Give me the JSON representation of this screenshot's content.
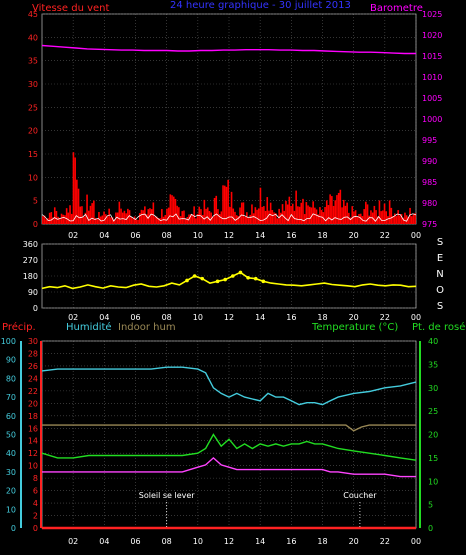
{
  "header": {
    "wind_label": "Vitesse du vent",
    "title": "24 heure graphique - 30 juillet 2013",
    "baro_label": "Barometre"
  },
  "colors": {
    "wind": "#ff0000",
    "wind_gust": "#ffff00",
    "wind_avg": "#ffffff",
    "baro": "#ff00ff",
    "title": "#3333ff",
    "direction": "#ffff00",
    "humidity": "#44ccdd",
    "indoor_hum": "#998855",
    "temperature": "#22dd22",
    "dew_point": "#ff44ff",
    "axis_left": "#ff2222",
    "axis_humidity": "#44ccdd",
    "axis_right": "#22dd22",
    "grid": "#555555",
    "frame": "#aaaaaa"
  },
  "chart_data": [
    {
      "type": "area",
      "name": "wind_barometer",
      "x_ticks": [
        "02",
        "04",
        "06",
        "08",
        "10",
        "12",
        "14",
        "16",
        "18",
        "20",
        "22",
        "00"
      ],
      "left_axis": {
        "ticks": [
          "0",
          "5",
          "10",
          "15",
          "20",
          "25",
          "30",
          "35",
          "40",
          "45"
        ],
        "ylim": [
          0,
          45
        ]
      },
      "right_axis": {
        "ticks": [
          "975",
          "980",
          "985",
          "990",
          "995",
          "1000",
          "1005",
          "1010",
          "1015",
          "1020",
          "1025"
        ],
        "ylim": [
          975,
          1025
        ]
      },
      "series": [
        {
          "name": "Vitesse du vent",
          "axis": "left",
          "values": [
            2,
            3,
            2,
            4,
            17,
            3,
            5,
            2,
            3,
            2,
            4,
            3,
            2,
            3,
            4,
            2,
            3,
            5,
            4,
            2,
            3,
            4,
            3,
            5,
            8,
            6,
            4,
            3,
            5,
            7,
            6,
            3,
            4,
            6,
            8,
            5,
            4,
            3,
            5,
            6,
            4,
            3,
            2,
            4,
            3,
            5,
            4,
            3,
            2,
            3
          ]
        },
        {
          "name": "Barometre",
          "axis": "right",
          "values": [
            1017.5,
            1017.3,
            1017.1,
            1016.9,
            1016.7,
            1016.6,
            1016.5,
            1016.4,
            1016.4,
            1016.3,
            1016.3,
            1016.3,
            1016.2,
            1016.2,
            1016.3,
            1016.3,
            1016.4,
            1016.4,
            1016.5,
            1016.5,
            1016.5,
            1016.4,
            1016.4,
            1016.3,
            1016.3,
            1016.2,
            1016.1,
            1016.0,
            1015.9,
            1015.9,
            1015.8,
            1015.7,
            1015.6,
            1015.6
          ]
        }
      ]
    },
    {
      "type": "scatter",
      "name": "wind_direction",
      "x_ticks": [
        "02",
        "04",
        "06",
        "08",
        "10",
        "12",
        "14",
        "16",
        "18",
        "20",
        "22",
        "00"
      ],
      "left_axis": {
        "ticks": [
          "0",
          "90",
          "180",
          "270",
          "360"
        ],
        "ylim": [
          0,
          360
        ]
      },
      "compass": [
        "S",
        "E",
        "N",
        "O",
        "S"
      ],
      "series": [
        {
          "name": "Direction",
          "values": [
            110,
            120,
            115,
            125,
            110,
            118,
            130,
            120,
            112,
            125,
            118,
            115,
            128,
            135,
            122,
            118,
            125,
            140,
            130,
            155,
            180,
            165,
            140,
            150,
            160,
            180,
            200,
            170,
            165,
            150,
            140,
            135,
            130,
            128,
            125,
            130,
            135,
            140,
            132,
            128,
            125,
            120,
            130,
            135,
            128,
            125,
            130,
            128,
            120,
            122
          ]
        }
      ]
    },
    {
      "type": "line",
      "name": "temperature_humidity",
      "legend": [
        "Précip.",
        "Humidité",
        "Indoor hum",
        "Temperature (°C)",
        "Pt. de rosée"
      ],
      "x_ticks": [
        "02",
        "04",
        "06",
        "08",
        "10",
        "12",
        "14",
        "16",
        "18",
        "20",
        "22",
        "00"
      ],
      "precip_axis": {
        "ticks": [
          "0",
          "2",
          "4",
          "6",
          "8",
          "10",
          "12",
          "14",
          "16",
          "18",
          "20",
          "22",
          "24",
          "26",
          "28",
          "30"
        ],
        "ylim": [
          0,
          30
        ]
      },
      "humidity_axis": {
        "ticks": [
          "0",
          "10",
          "20",
          "30",
          "40",
          "50",
          "60",
          "70",
          "80",
          "90",
          "100"
        ],
        "ylim": [
          0,
          100
        ]
      },
      "temp_axis": {
        "ticks": [
          "0",
          "5",
          "10",
          "15",
          "20",
          "25",
          "30",
          "35",
          "40"
        ],
        "ylim": [
          0,
          40
        ]
      },
      "annotations": [
        {
          "text": "Soleil se lever",
          "x": 8.0
        },
        {
          "text": "Coucher",
          "x": 20.4
        }
      ],
      "series": [
        {
          "name": "Humidité",
          "axis": "humidity",
          "x": [
            0,
            1,
            2,
            3,
            4,
            5,
            6,
            7,
            8,
            9,
            10,
            10.5,
            11,
            11.5,
            12,
            12.5,
            13,
            13.5,
            14,
            14.5,
            15,
            15.5,
            16,
            16.5,
            17,
            17.5,
            18,
            18.5,
            19,
            20,
            21,
            22,
            23,
            24
          ],
          "values": [
            84,
            85,
            85,
            85,
            85,
            85,
            85,
            85,
            86,
            86,
            85,
            83,
            75,
            72,
            70,
            72,
            70,
            69,
            68,
            72,
            70,
            70,
            68,
            66,
            67,
            67,
            66,
            68,
            70,
            72,
            73,
            75,
            76,
            78
          ]
        },
        {
          "name": "Indoor hum",
          "axis": "humidity",
          "x": [
            0,
            2,
            4,
            6,
            8,
            10,
            12,
            14,
            16,
            18,
            19.5,
            20,
            20.5,
            21,
            22,
            23,
            24
          ],
          "values": [
            55,
            55,
            55,
            55,
            55,
            55,
            55,
            55,
            55,
            55,
            55,
            52,
            54,
            55,
            55,
            55,
            55
          ]
        },
        {
          "name": "Temperature (°C)",
          "axis": "temp",
          "x": [
            0,
            1,
            2,
            3,
            4,
            5,
            6,
            7,
            8,
            9,
            10,
            10.5,
            11,
            11.5,
            12,
            12.5,
            13,
            13.5,
            14,
            14.5,
            15,
            15.5,
            16,
            16.5,
            17,
            17.5,
            18,
            18.5,
            19,
            20,
            21,
            22,
            23,
            24
          ],
          "values": [
            16,
            15,
            15,
            15.5,
            15.5,
            15.5,
            15.5,
            15.5,
            15.5,
            15.5,
            16,
            17,
            20,
            17.5,
            19,
            17,
            18,
            17,
            18,
            17.5,
            18,
            17.5,
            18,
            18,
            18.5,
            18,
            18,
            17.5,
            17,
            16.5,
            16,
            15.5,
            15,
            14.5
          ]
        },
        {
          "name": "Pt. de rosée",
          "axis": "temp",
          "x": [
            0,
            1,
            2,
            3,
            4,
            5,
            6,
            7,
            8,
            9,
            10,
            10.5,
            11,
            11.5,
            12,
            12.5,
            13,
            13.5,
            14,
            14.5,
            15,
            15.5,
            16,
            16.5,
            17,
            17.5,
            18,
            18.5,
            19,
            20,
            21,
            22,
            23,
            24
          ],
          "values": [
            12,
            12,
            12,
            12,
            12,
            12,
            12,
            12,
            12,
            12,
            13,
            13.5,
            15,
            13.5,
            13,
            12.5,
            12.5,
            12.5,
            12.5,
            12.5,
            12.5,
            12.5,
            12.5,
            12.5,
            12.5,
            12.5,
            12.5,
            12,
            12,
            11.5,
            11.5,
            11.5,
            11,
            11
          ]
        },
        {
          "name": "Précip.",
          "axis": "precip",
          "x": [
            0,
            24
          ],
          "values": [
            0,
            0
          ]
        }
      ]
    }
  ]
}
